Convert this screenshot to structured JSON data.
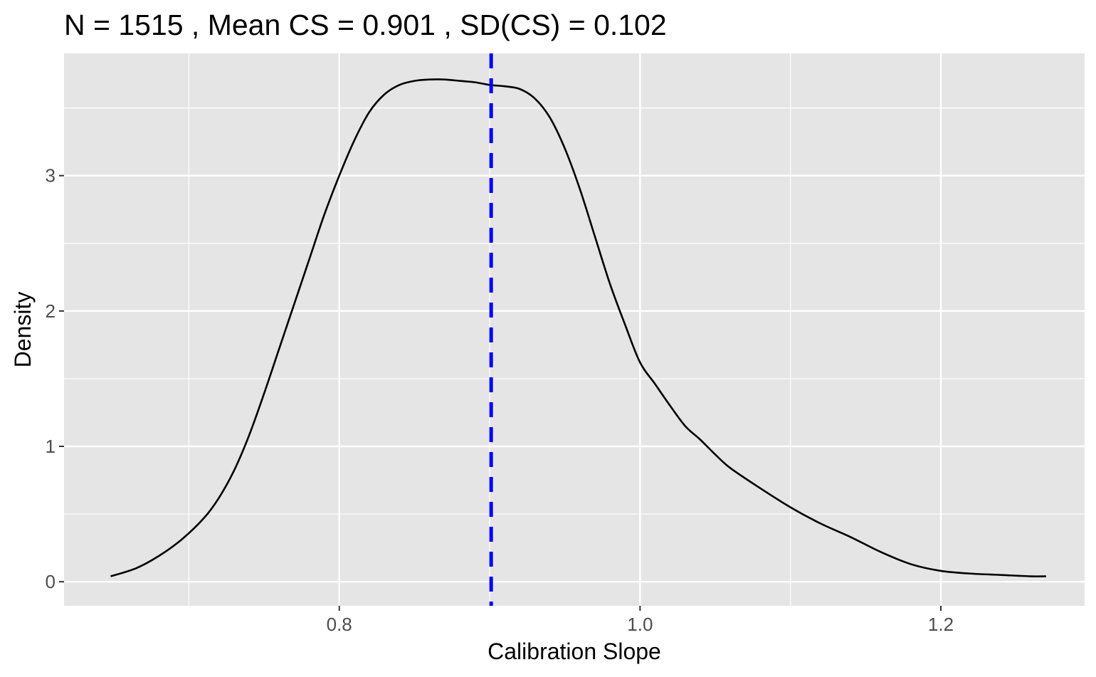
{
  "chart_data": {
    "type": "area",
    "title": "N =  1515 , Mean CS =  0.901 , SD(CS) =  0.102",
    "xlabel": "Calibration Slope",
    "ylabel": "Density",
    "xlim": [
      0.617,
      1.2956
    ],
    "ylim": [
      -0.178,
      3.903
    ],
    "x_ticks": [
      0.8,
      1.0,
      1.2
    ],
    "x_tick_labels": [
      "0.8",
      "1.0",
      "1.2"
    ],
    "y_ticks": [
      0,
      1,
      2,
      3
    ],
    "y_tick_labels": [
      "0",
      "1",
      "2",
      "3"
    ],
    "grid": true,
    "background": "#e5e5e5",
    "grid_color": "#ffffff",
    "series": [
      {
        "x": [
          0.648,
          0.665,
          0.68,
          0.695,
          0.71,
          0.72,
          0.73,
          0.74,
          0.75,
          0.76,
          0.77,
          0.78,
          0.79,
          0.8,
          0.81,
          0.82,
          0.83,
          0.84,
          0.85,
          0.86,
          0.87,
          0.88,
          0.89,
          0.9,
          0.91,
          0.92,
          0.93,
          0.94,
          0.95,
          0.96,
          0.97,
          0.98,
          0.99,
          1.0,
          1.01,
          1.02,
          1.03,
          1.04,
          1.05,
          1.06,
          1.08,
          1.1,
          1.12,
          1.14,
          1.16,
          1.18,
          1.2,
          1.22,
          1.24,
          1.26,
          1.27
        ],
        "y": [
          0.04,
          0.1,
          0.19,
          0.31,
          0.47,
          0.62,
          0.82,
          1.08,
          1.39,
          1.72,
          2.05,
          2.38,
          2.71,
          3.0,
          3.26,
          3.47,
          3.6,
          3.67,
          3.7,
          3.71,
          3.71,
          3.7,
          3.69,
          3.67,
          3.66,
          3.64,
          3.57,
          3.43,
          3.2,
          2.9,
          2.55,
          2.2,
          1.9,
          1.62,
          1.46,
          1.3,
          1.15,
          1.05,
          0.94,
          0.84,
          0.69,
          0.55,
          0.43,
          0.33,
          0.22,
          0.13,
          0.08,
          0.06,
          0.05,
          0.04,
          0.04
        ],
        "color": "#000000"
      }
    ],
    "mean_line": {
      "x": 0.901,
      "color": "#0000ff",
      "style": "dashed"
    }
  }
}
